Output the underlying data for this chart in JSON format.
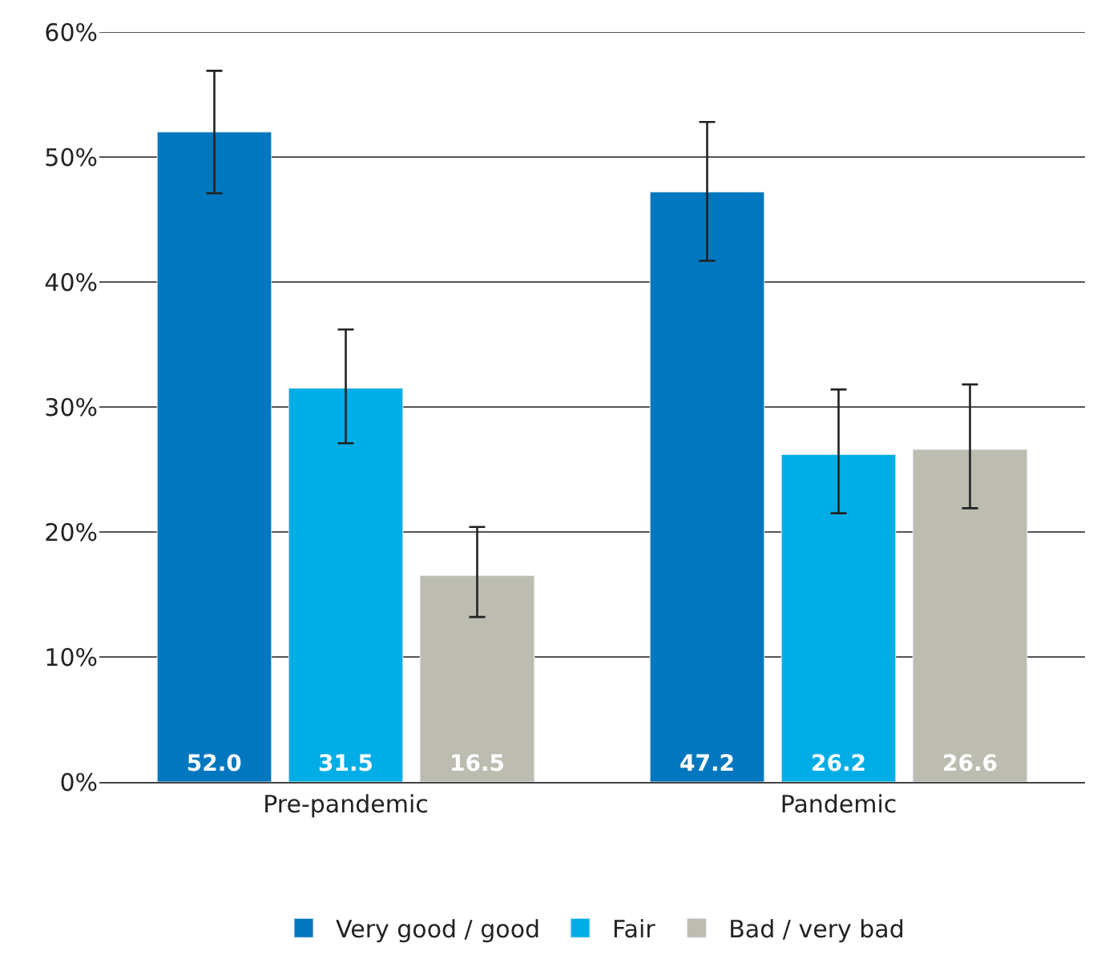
{
  "chart_data": {
    "type": "bar",
    "categories": [
      "Pre-pandemic",
      "Pandemic"
    ],
    "series": [
      {
        "name": "Very good / good",
        "color": "#0077be",
        "values": [
          52.0,
          47.2
        ],
        "value_labels": [
          "52.0",
          "47.2"
        ],
        "errors": [
          [
            47.1,
            56.9
          ],
          [
            41.7,
            52.8
          ]
        ]
      },
      {
        "name": "Fair",
        "color": "#00ade6",
        "values": [
          31.5,
          26.2
        ],
        "value_labels": [
          "31.5",
          "26.2"
        ],
        "errors": [
          [
            27.1,
            36.2
          ],
          [
            21.5,
            31.4
          ]
        ]
      },
      {
        "name": "Bad / very bad",
        "color": "#bcbcb0",
        "values": [
          16.5,
          26.6
        ],
        "value_labels": [
          "16.5",
          "26.6"
        ],
        "errors": [
          [
            13.2,
            20.4
          ],
          [
            21.9,
            31.8
          ]
        ]
      }
    ],
    "ylim": [
      0,
      60
    ],
    "yticks": [
      {
        "value": 0,
        "label": "0%"
      },
      {
        "value": 10,
        "label": "10%"
      },
      {
        "value": 20,
        "label": "20%"
      },
      {
        "value": 30,
        "label": "30%"
      },
      {
        "value": 40,
        "label": "40%"
      },
      {
        "value": 50,
        "label": "50%"
      },
      {
        "value": 60,
        "label": "60%"
      }
    ],
    "grid": "y",
    "legend": "bottom"
  }
}
